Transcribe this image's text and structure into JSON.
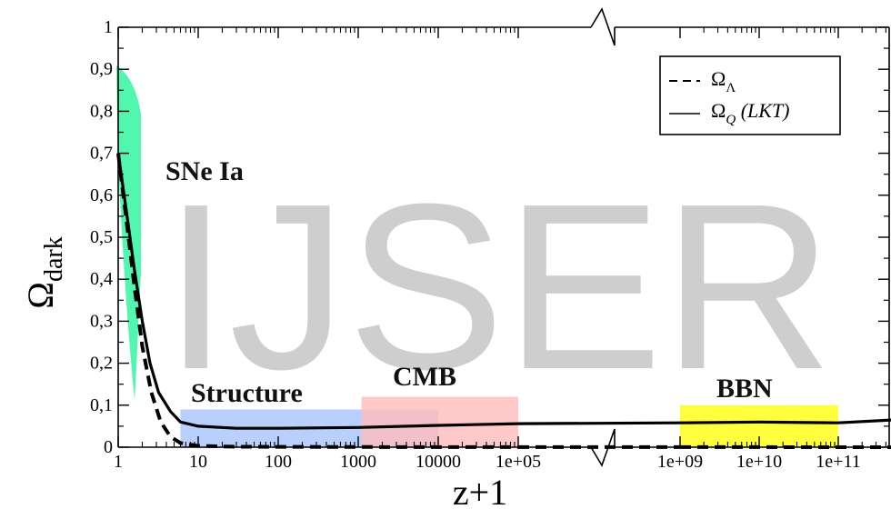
{
  "chart_data": {
    "type": "line",
    "xlabel": "z+1",
    "ylabel_main": "Ω",
    "ylabel_sub": "dark",
    "ylim": [
      0,
      1
    ],
    "yticks": [
      {
        "v": 0,
        "label": "0"
      },
      {
        "v": 0.1,
        "label": "0,1"
      },
      {
        "v": 0.2,
        "label": "0,2"
      },
      {
        "v": 0.3,
        "label": "0,3"
      },
      {
        "v": 0.4,
        "label": "0,4"
      },
      {
        "v": 0.5,
        "label": "0,5"
      },
      {
        "v": 0.6,
        "label": "0,6"
      },
      {
        "v": 0.7,
        "label": "0,7"
      },
      {
        "v": 0.8,
        "label": "0,8"
      },
      {
        "v": 0.9,
        "label": "0,9"
      },
      {
        "v": 1,
        "label": "1"
      }
    ],
    "xticks_left": [
      {
        "v": 1,
        "label": "1"
      },
      {
        "v": 10,
        "label": "10"
      },
      {
        "v": 100,
        "label": "100"
      },
      {
        "v": 1000,
        "label": "1000"
      },
      {
        "v": 10000,
        "label": "10000"
      },
      {
        "v": 100000,
        "label": "1e+05"
      }
    ],
    "xticks_right": [
      {
        "v": 1000000000,
        "label": "1e+09"
      },
      {
        "v": 10000000000,
        "label": "1e+10"
      },
      {
        "v": 100000000000,
        "label": "1e+11"
      }
    ],
    "x_scale": "log",
    "axis_break": "between 1e+05 and 1e+09",
    "legend_position": "top-right",
    "legend": [
      {
        "key": "lambda",
        "sym": "Ω",
        "sub": "Λ",
        "suffix": ""
      },
      {
        "key": "lkt",
        "sym": "Ω",
        "sub": "Q",
        "suffix": " (LKT)"
      }
    ],
    "regions": [
      {
        "label": "SNe Ia",
        "color": "#3ef5a6"
      },
      {
        "label": "Structure",
        "color": "#a8c4ff",
        "x0": 6,
        "x1": 10000,
        "y0": 0,
        "y1": 0.09
      },
      {
        "label": "CMB",
        "color": "#ffbcbc",
        "x0": 1100,
        "x1": 100000,
        "y0": 0,
        "y1": 0.12
      },
      {
        "label": "BBN",
        "color": "#ffff33",
        "x0": 1000000000,
        "x1": 100000000000,
        "y0": 0,
        "y1": 0.1
      }
    ],
    "series": [
      {
        "key": "lambda",
        "style": "dashed",
        "points": [
          [
            1,
            0.7
          ],
          [
            1.25,
            0.55
          ],
          [
            1.6,
            0.38
          ],
          [
            2,
            0.24
          ],
          [
            2.6,
            0.13
          ],
          [
            3.4,
            0.06
          ],
          [
            4.5,
            0.025
          ],
          [
            6,
            0.01
          ],
          [
            10,
            0.003
          ],
          [
            30,
            0.001
          ],
          [
            1000,
            0.0005
          ],
          [
            100000,
            0.0003
          ],
          [
            1000000000,
            0.0002
          ],
          [
            1000000000000,
            0.0001
          ]
        ]
      },
      {
        "key": "lkt",
        "style": "solid",
        "points": [
          [
            1,
            0.7
          ],
          [
            1.25,
            0.57
          ],
          [
            1.6,
            0.42
          ],
          [
            2,
            0.3
          ],
          [
            2.5,
            0.2
          ],
          [
            3.2,
            0.13
          ],
          [
            4.5,
            0.085
          ],
          [
            6,
            0.06
          ],
          [
            10,
            0.05
          ],
          [
            30,
            0.045
          ],
          [
            100,
            0.045
          ],
          [
            1000,
            0.047
          ],
          [
            10000,
            0.052
          ],
          [
            100000,
            0.056
          ],
          [
            1000000000,
            0.058
          ],
          [
            10000000000,
            0.06
          ],
          [
            100000000000,
            0.058
          ],
          [
            1000000000000,
            0.068
          ]
        ]
      }
    ]
  },
  "watermark": "IJSER"
}
